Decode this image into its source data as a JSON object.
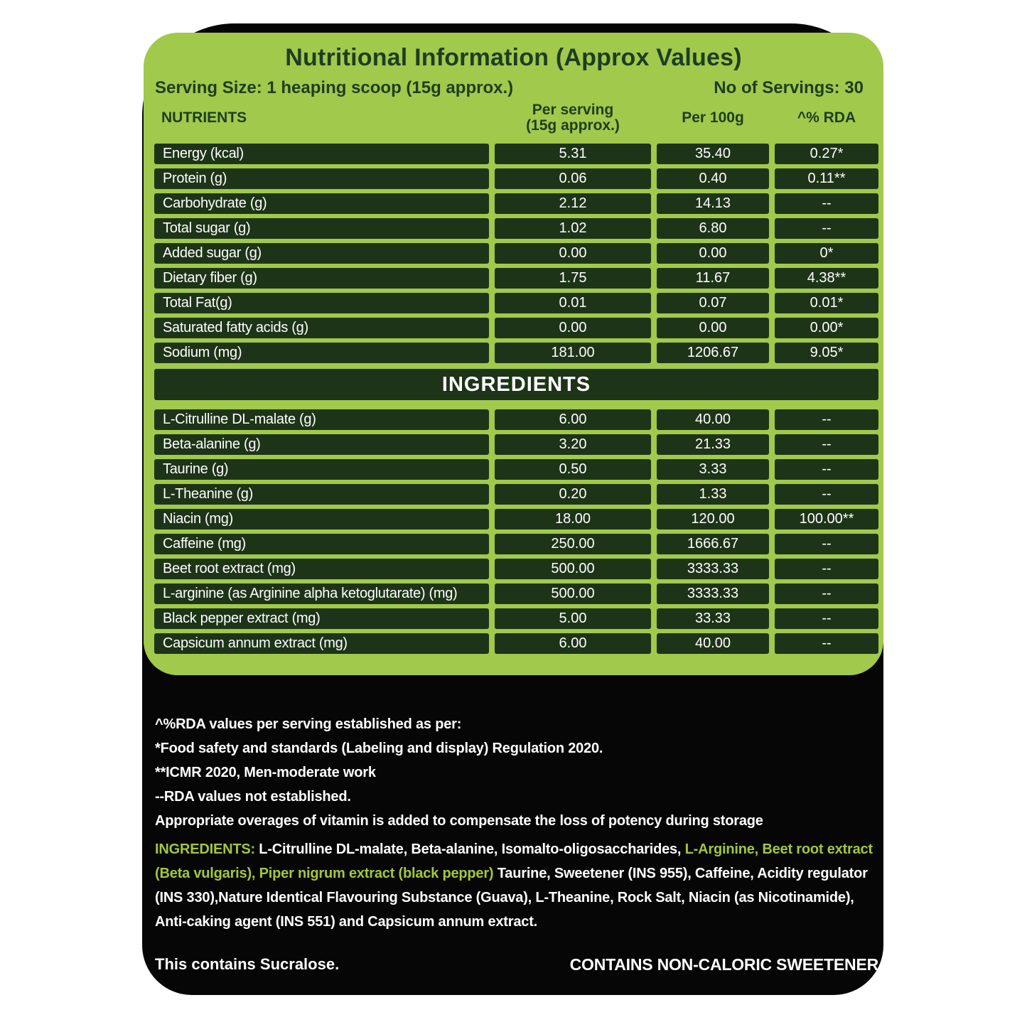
{
  "panel": {
    "title": "Nutritional Information (Approx Values)",
    "serving_size": "Serving Size: 1 heaping scoop (15g approx.)",
    "servings": "No of Servings: 30"
  },
  "table": {
    "headers": {
      "nutrients": "NUTRIENTS",
      "per_serving_line1": "Per serving",
      "per_serving_line2": "(15g approx.)",
      "per_100g": "Per 100g",
      "rda": "^% RDA"
    },
    "nutrient_rows": [
      {
        "name": "Energy (kcal)",
        "per_serving": "5.31",
        "per_100g": "35.40",
        "rda": "0.27*"
      },
      {
        "name": "Protein (g)",
        "per_serving": "0.06",
        "per_100g": "0.40",
        "rda": "0.11**"
      },
      {
        "name": "Carbohydrate (g)",
        "per_serving": "2.12",
        "per_100g": "14.13",
        "rda": "--"
      },
      {
        "name": "Total sugar (g)",
        "per_serving": "1.02",
        "per_100g": "6.80",
        "rda": "--"
      },
      {
        "name": "Added sugar (g)",
        "per_serving": "0.00",
        "per_100g": "0.00",
        "rda": "0*"
      },
      {
        "name": "Dietary fiber (g)",
        "per_serving": "1.75",
        "per_100g": "11.67",
        "rda": "4.38**"
      },
      {
        "name": "Total Fat(g)",
        "per_serving": "0.01",
        "per_100g": "0.07",
        "rda": "0.01*"
      },
      {
        "name": "Saturated fatty acids (g)",
        "per_serving": "0.00",
        "per_100g": "0.00",
        "rda": "0.00*"
      },
      {
        "name": "Sodium (mg)",
        "per_serving": "181.00",
        "per_100g": "1206.67",
        "rda": "9.05*"
      }
    ],
    "ingredients_band": "INGREDIENTS",
    "ingredient_rows": [
      {
        "name": "L-Citrulline DL-malate (g)",
        "per_serving": "6.00",
        "per_100g": "40.00",
        "rda": "--"
      },
      {
        "name": "Beta-alanine (g)",
        "per_serving": "3.20",
        "per_100g": "21.33",
        "rda": "--"
      },
      {
        "name": "Taurine (g)",
        "per_serving": "0.50",
        "per_100g": "3.33",
        "rda": "--"
      },
      {
        "name": "L-Theanine (g)",
        "per_serving": "0.20",
        "per_100g": "1.33",
        "rda": "--"
      },
      {
        "name": "Niacin (mg)",
        "per_serving": "18.00",
        "per_100g": "120.00",
        "rda": "100.00**"
      },
      {
        "name": "Caffeine (mg)",
        "per_serving": "250.00",
        "per_100g": "1666.67",
        "rda": "--"
      },
      {
        "name": "Beet root extract (mg)",
        "per_serving": "500.00",
        "per_100g": "3333.33",
        "rda": "--"
      },
      {
        "name": "L-arginine (as Arginine alpha ketoglutarate) (mg)",
        "per_serving": "500.00",
        "per_100g": "3333.33",
        "rda": "--"
      },
      {
        "name": "Black pepper extract (mg)",
        "per_serving": "5.00",
        "per_100g": "33.33",
        "rda": "--"
      },
      {
        "name": "Capsicum annum extract (mg)",
        "per_serving": "6.00",
        "per_100g": "40.00",
        "rda": "--"
      }
    ]
  },
  "footnotes": {
    "lines": [
      "^%RDA values per serving established as per:",
      "*Food safety and standards (Labeling and display) Regulation 2020.",
      "**ICMR 2020, Men-moderate work",
      "--RDA values not established.",
      "Appropriate overages of vitamin is added to compensate the loss of potency during storage"
    ]
  },
  "ingredients_paragraph": {
    "segments": [
      {
        "text": "INGREDIENTS: ",
        "color": "green"
      },
      {
        "text": "L-Citrulline DL-malate, Beta-alanine, Isomalto-oligosaccharides, ",
        "color": "white"
      },
      {
        "text": "L-Arginine, Beet root extract (Beta vulgaris), Piper nigrum extract (black pepper)",
        "color": "green"
      },
      {
        "text": " Taurine, Sweetener (INS 955), Caffeine, Acidity regulator (INS 330),Nature Identical Flavouring Substance (Guava), L-Theanine, Rock Salt, Niacin (as Nicotinamide), Anti-caking agent (INS 551) and Capsicum annum extract.",
        "color": "white"
      }
    ]
  },
  "bottom": {
    "left": "This contains Sucralose.",
    "right": "CONTAINS NON-CALORIC SWEETENER"
  },
  "colors": {
    "panel_green": "#a1c94b",
    "cell_dark_green": "#1e3418",
    "heading_dark_green": "#1e3d22",
    "ingredient_green": "#a4c63e",
    "black_background": "#060606",
    "text_white": "#ffffff"
  }
}
